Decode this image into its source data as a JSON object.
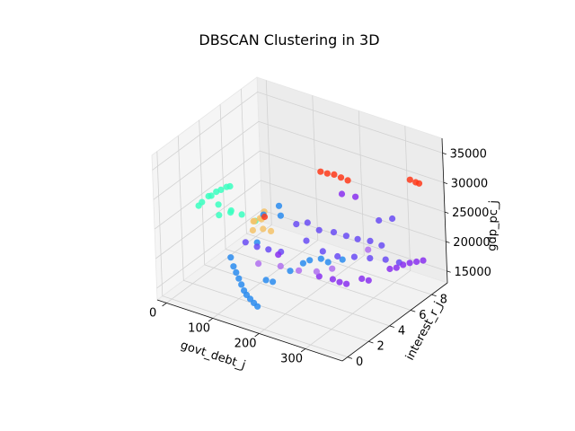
{
  "chart_data": {
    "type": "scatter",
    "projection": "3d",
    "title": "DBSCAN Clustering in 3D",
    "xlabel": "govt_debt_j",
    "ylabel": "interest_r_j",
    "zlabel": "gdp_pc_j",
    "xlim": [
      -20,
      380
    ],
    "ylim": [
      -0.5,
      9.5
    ],
    "zlim": [
      13000,
      37500
    ],
    "xticks": [
      0,
      100,
      200,
      300
    ],
    "yticks": [
      0,
      2,
      4,
      6,
      8
    ],
    "zticks": [
      15000,
      20000,
      25000,
      30000,
      35000
    ],
    "xtick_labels": [
      "0",
      "100",
      "200",
      "300"
    ],
    "ytick_labels": [
      "0",
      "2",
      "4",
      "6",
      "8"
    ],
    "ztick_labels": [
      "15000",
      "20000",
      "25000",
      "30000",
      "35000"
    ],
    "grid": true,
    "legend": "none",
    "series": [
      {
        "color": "#3affc0",
        "points": [
          [
            5,
            2.6,
            25500
          ],
          [
            15,
            2.5,
            26500
          ],
          [
            25,
            2.7,
            27500
          ],
          [
            40,
            2.8,
            28500
          ],
          [
            55,
            2.6,
            29500
          ],
          [
            70,
            2.5,
            30500
          ],
          [
            80,
            2.4,
            31000
          ],
          [
            10,
            3.6,
            26000
          ],
          [
            20,
            3.8,
            24500
          ],
          [
            30,
            3.4,
            23500
          ],
          [
            45,
            3.9,
            24000
          ],
          [
            60,
            3.2,
            25000
          ],
          [
            75,
            3.6,
            24500
          ],
          [
            90,
            4.2,
            23000
          ]
        ]
      },
      {
        "color": "#f5c36a",
        "points": [
          [
            100,
            3.6,
            24000
          ],
          [
            110,
            3.8,
            24500
          ],
          [
            120,
            3.5,
            25000
          ],
          [
            95,
            3.9,
            23500
          ],
          [
            130,
            3.2,
            24000
          ],
          [
            140,
            3.5,
            23500
          ],
          [
            115,
            4.0,
            25500
          ],
          [
            105,
            3.3,
            23000
          ]
        ]
      },
      {
        "color": "#2a8cf0",
        "points": [
          [
            120,
            3.7,
            25500
          ],
          [
            150,
            3.9,
            27500
          ],
          [
            160,
            3.6,
            26500
          ],
          [
            130,
            2.6,
            22500
          ],
          [
            90,
            1.8,
            20000
          ],
          [
            100,
            1.6,
            19000
          ],
          [
            110,
            1.4,
            18500
          ],
          [
            120,
            1.2,
            18000
          ],
          [
            130,
            1.0,
            17500
          ],
          [
            140,
            0.8,
            17000
          ],
          [
            150,
            0.6,
            16800
          ],
          [
            160,
            0.5,
            16500
          ],
          [
            170,
            0.4,
            16200
          ],
          [
            180,
            0.3,
            16000
          ],
          [
            170,
            1.6,
            18500
          ],
          [
            180,
            1.8,
            18200
          ],
          [
            200,
            2.6,
            19500
          ],
          [
            210,
            3.4,
            20000
          ],
          [
            220,
            3.6,
            20500
          ],
          [
            240,
            3.8,
            21000
          ],
          [
            260,
            3.6,
            21200
          ],
          [
            280,
            4.1,
            21500
          ]
        ]
      },
      {
        "color": "#6a4cf5",
        "points": [
          [
            170,
            4.6,
            24000
          ],
          [
            190,
            4.8,
            24500
          ],
          [
            210,
            5.0,
            23500
          ],
          [
            230,
            5.5,
            23000
          ],
          [
            250,
            5.8,
            22500
          ],
          [
            270,
            6.0,
            22200
          ],
          [
            290,
            6.3,
            22000
          ],
          [
            310,
            6.5,
            21500
          ],
          [
            200,
            4.2,
            22500
          ],
          [
            240,
            4.0,
            22000
          ],
          [
            260,
            4.5,
            21000
          ],
          [
            280,
            5.2,
            20500
          ],
          [
            300,
            5.8,
            20000
          ],
          [
            320,
            6.4,
            19500
          ],
          [
            340,
            6.8,
            19000
          ],
          [
            100,
            2.8,
            21500
          ],
          [
            120,
            3.0,
            21000
          ],
          [
            140,
            3.2,
            20800
          ],
          [
            160,
            3.5,
            20500
          ],
          [
            280,
            7.6,
            23500
          ],
          [
            300,
            8.0,
            23800
          ]
        ]
      },
      {
        "color": "#8a30f0",
        "points": [
          [
            220,
            6.8,
            27500
          ],
          [
            240,
            7.2,
            27000
          ],
          [
            180,
            2.4,
            22000
          ],
          [
            260,
            4.6,
            16500
          ],
          [
            270,
            4.8,
            16200
          ],
          [
            250,
            4.4,
            17000
          ],
          [
            290,
            5.4,
            16800
          ],
          [
            300,
            5.6,
            16500
          ],
          [
            320,
            8.0,
            16500
          ],
          [
            330,
            8.2,
            16800
          ],
          [
            340,
            8.4,
            17000
          ],
          [
            350,
            8.6,
            17200
          ],
          [
            300,
            7.6,
            15800
          ],
          [
            310,
            7.8,
            16000
          ],
          [
            230,
            4.0,
            17500
          ]
        ]
      },
      {
        "color": "#b070f0",
        "points": [
          [
            170,
            3.0,
            19000
          ],
          [
            200,
            3.4,
            18500
          ],
          [
            240,
            4.8,
            18000
          ],
          [
            280,
            6.5,
            20000
          ],
          [
            220,
            4.2,
            17800
          ],
          [
            150,
            1.8,
            20500
          ]
        ]
      },
      {
        "color": "#ff3a1a",
        "points": [
          [
            180,
            6.6,
            30500
          ],
          [
            190,
            6.8,
            30200
          ],
          [
            200,
            7.0,
            30000
          ],
          [
            210,
            7.2,
            29500
          ],
          [
            220,
            7.4,
            29000
          ],
          [
            330,
            8.5,
            30500
          ],
          [
            340,
            8.6,
            30200
          ],
          [
            345,
            8.7,
            30000
          ],
          [
            120,
            3.8,
            25000
          ]
        ]
      }
    ]
  }
}
